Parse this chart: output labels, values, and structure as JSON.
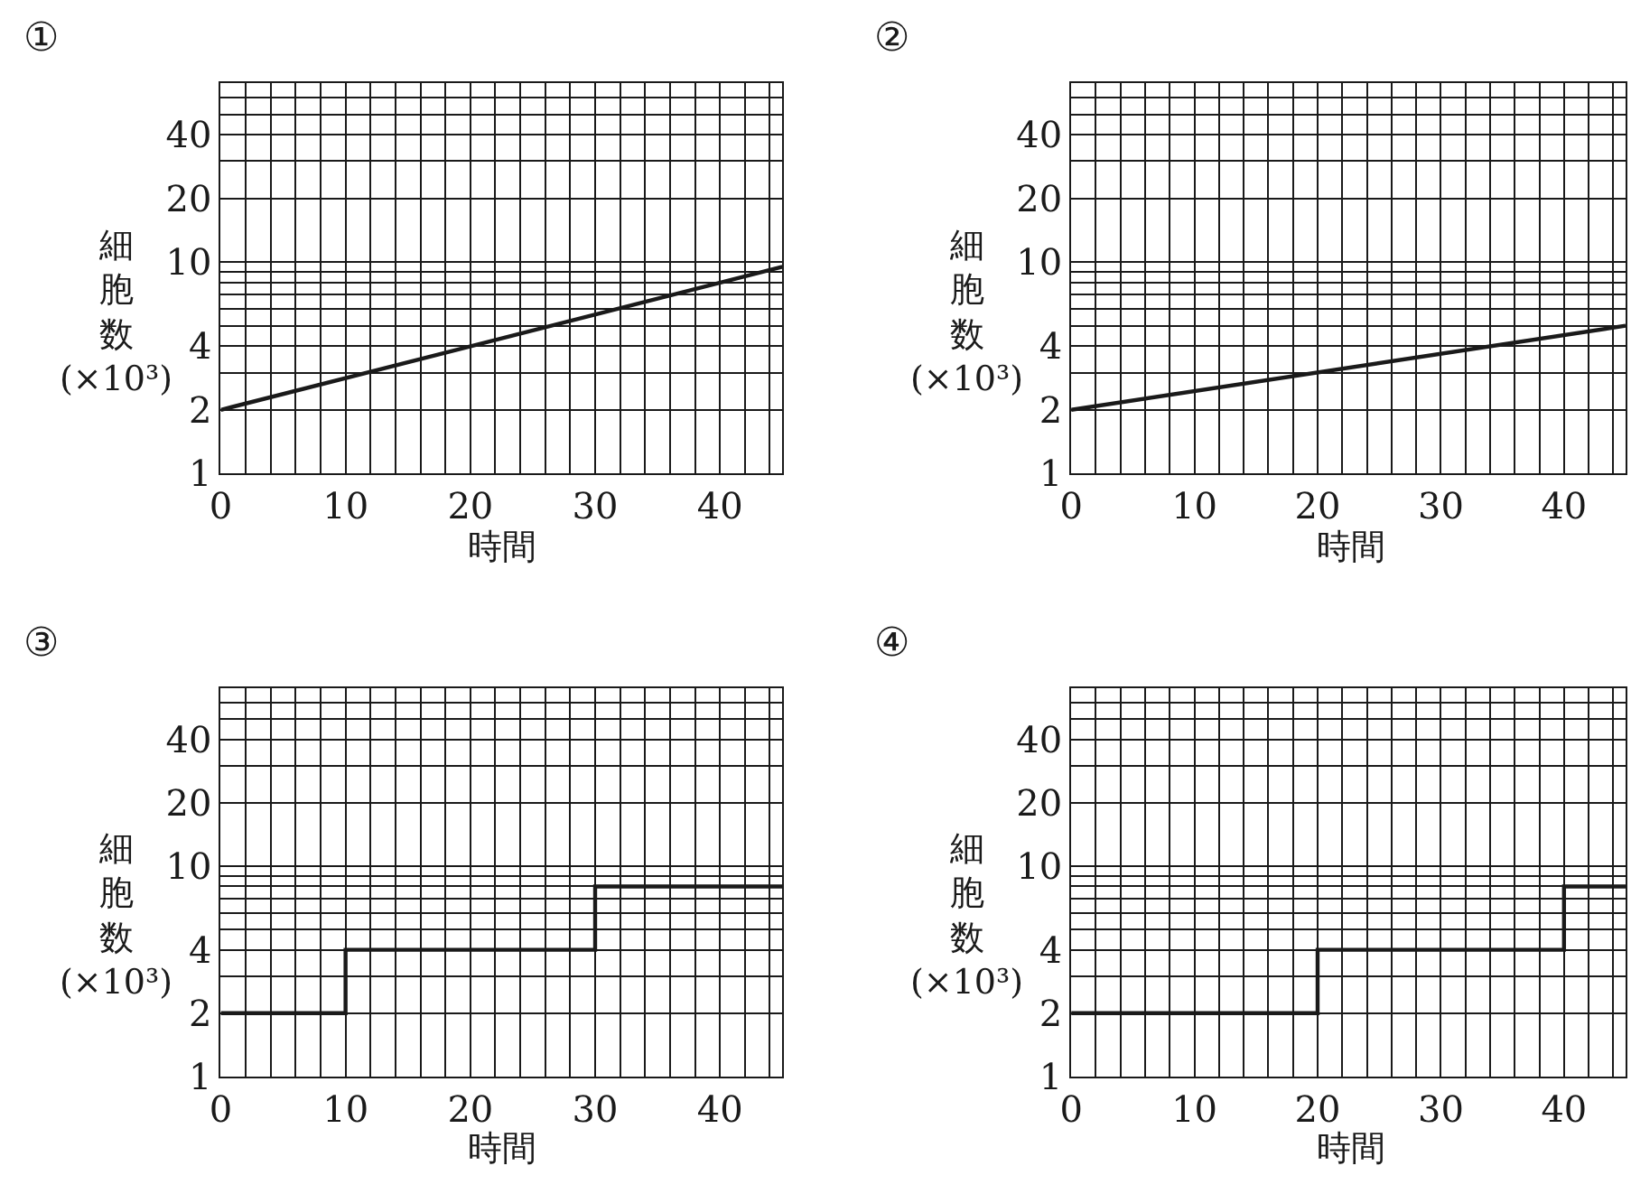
{
  "chart_data": [
    {
      "type": "line",
      "title": "①",
      "xlabel": "時間",
      "ylabel": "細胞数 (×10³)",
      "x": [
        0,
        45
      ],
      "series": [
        {
          "color": "#1a1a1a",
          "values": [
            2,
            9.5
          ]
        }
      ],
      "xlim": [
        0,
        45
      ],
      "ylim": [
        1,
        70
      ],
      "log": true,
      "grid": true,
      "marker": "none",
      "line_style": "solid",
      "xticks": [
        0,
        {
          "value": 2,
          "label": null
        },
        {
          "value": 4,
          "label": null
        },
        {
          "value": 6,
          "label": null
        },
        {
          "value": 8,
          "label": null
        },
        10,
        {
          "value": 12,
          "label": null
        },
        {
          "value": 14,
          "label": null
        },
        {
          "value": 16,
          "label": null
        },
        {
          "value": 18,
          "label": null
        },
        20,
        {
          "value": 22,
          "label": null
        },
        {
          "value": 24,
          "label": null
        },
        {
          "value": 26,
          "label": null
        },
        {
          "value": 28,
          "label": null
        },
        30,
        {
          "value": 32,
          "label": null
        },
        {
          "value": 34,
          "label": null
        },
        {
          "value": 36,
          "label": null
        },
        {
          "value": 38,
          "label": null
        },
        40,
        {
          "value": 42,
          "label": null
        },
        {
          "value": 44,
          "label": null
        }
      ],
      "yticks": [
        1,
        2,
        {
          "value": 3,
          "label": null
        },
        4,
        {
          "value": 5,
          "label": null
        },
        {
          "value": 6,
          "label": null
        },
        {
          "value": 7,
          "label": null
        },
        {
          "value": 8,
          "label": null
        },
        {
          "value": 9,
          "label": null
        },
        10,
        20,
        {
          "value": 30,
          "label": null
        },
        40,
        {
          "value": 50,
          "label": null
        },
        {
          "value": 60,
          "label": null
        },
        {
          "value": 70,
          "label": null
        }
      ]
    },
    {
      "type": "line",
      "title": "②",
      "xlabel": "時間",
      "ylabel": "細胞数 (×10³)",
      "x": [
        0,
        45
      ],
      "series": [
        {
          "color": "#1a1a1a",
          "values": [
            2,
            5
          ]
        }
      ],
      "xlim": [
        0,
        45
      ],
      "ylim": [
        1,
        70
      ],
      "log": true,
      "grid": true,
      "marker": "none",
      "line_style": "solid",
      "xticks": [
        0,
        {
          "value": 2,
          "label": null
        },
        {
          "value": 4,
          "label": null
        },
        {
          "value": 6,
          "label": null
        },
        {
          "value": 8,
          "label": null
        },
        10,
        {
          "value": 12,
          "label": null
        },
        {
          "value": 14,
          "label": null
        },
        {
          "value": 16,
          "label": null
        },
        {
          "value": 18,
          "label": null
        },
        20,
        {
          "value": 22,
          "label": null
        },
        {
          "value": 24,
          "label": null
        },
        {
          "value": 26,
          "label": null
        },
        {
          "value": 28,
          "label": null
        },
        30,
        {
          "value": 32,
          "label": null
        },
        {
          "value": 34,
          "label": null
        },
        {
          "value": 36,
          "label": null
        },
        {
          "value": 38,
          "label": null
        },
        40,
        {
          "value": 42,
          "label": null
        },
        {
          "value": 44,
          "label": null
        }
      ],
      "yticks": [
        1,
        2,
        {
          "value": 3,
          "label": null
        },
        4,
        {
          "value": 5,
          "label": null
        },
        {
          "value": 6,
          "label": null
        },
        {
          "value": 7,
          "label": null
        },
        {
          "value": 8,
          "label": null
        },
        {
          "value": 9,
          "label": null
        },
        10,
        20,
        {
          "value": 30,
          "label": null
        },
        40,
        {
          "value": 50,
          "label": null
        },
        {
          "value": 60,
          "label": null
        },
        {
          "value": 70,
          "label": null
        }
      ]
    },
    {
      "type": "step",
      "title": "③",
      "xlabel": "時間",
      "ylabel": "細胞数 (×10³)",
      "x": [
        0,
        10,
        30,
        45
      ],
      "series": [
        {
          "color": "#1a1a1a",
          "values": [
            2,
            4,
            8,
            8
          ]
        }
      ],
      "xlim": [
        0,
        45
      ],
      "ylim": [
        1,
        70
      ],
      "log": true,
      "grid": true,
      "marker": "none",
      "line_style": "solid",
      "xticks": [
        0,
        {
          "value": 2,
          "label": null
        },
        {
          "value": 4,
          "label": null
        },
        {
          "value": 6,
          "label": null
        },
        {
          "value": 8,
          "label": null
        },
        10,
        {
          "value": 12,
          "label": null
        },
        {
          "value": 14,
          "label": null
        },
        {
          "value": 16,
          "label": null
        },
        {
          "value": 18,
          "label": null
        },
        20,
        {
          "value": 22,
          "label": null
        },
        {
          "value": 24,
          "label": null
        },
        {
          "value": 26,
          "label": null
        },
        {
          "value": 28,
          "label": null
        },
        30,
        {
          "value": 32,
          "label": null
        },
        {
          "value": 34,
          "label": null
        },
        {
          "value": 36,
          "label": null
        },
        {
          "value": 38,
          "label": null
        },
        40,
        {
          "value": 42,
          "label": null
        },
        {
          "value": 44,
          "label": null
        }
      ],
      "yticks": [
        1,
        2,
        {
          "value": 3,
          "label": null
        },
        4,
        {
          "value": 5,
          "label": null
        },
        {
          "value": 6,
          "label": null
        },
        {
          "value": 7,
          "label": null
        },
        {
          "value": 8,
          "label": null
        },
        {
          "value": 9,
          "label": null
        },
        10,
        20,
        {
          "value": 30,
          "label": null
        },
        40,
        {
          "value": 50,
          "label": null
        },
        {
          "value": 60,
          "label": null
        },
        {
          "value": 70,
          "label": null
        }
      ]
    },
    {
      "type": "step",
      "title": "④",
      "xlabel": "時間",
      "ylabel": "細胞数 (×10³)",
      "x": [
        0,
        20,
        40,
        45
      ],
      "series": [
        {
          "color": "#1a1a1a",
          "values": [
            2,
            4,
            8,
            8
          ]
        }
      ],
      "xlim": [
        0,
        45
      ],
      "ylim": [
        1,
        70
      ],
      "log": true,
      "grid": true,
      "marker": "none",
      "line_style": "solid",
      "xticks": [
        0,
        {
          "value": 2,
          "label": null
        },
        {
          "value": 4,
          "label": null
        },
        {
          "value": 6,
          "label": null
        },
        {
          "value": 8,
          "label": null
        },
        10,
        {
          "value": 12,
          "label": null
        },
        {
          "value": 14,
          "label": null
        },
        {
          "value": 16,
          "label": null
        },
        {
          "value": 18,
          "label": null
        },
        20,
        {
          "value": 22,
          "label": null
        },
        {
          "value": 24,
          "label": null
        },
        {
          "value": 26,
          "label": null
        },
        {
          "value": 28,
          "label": null
        },
        30,
        {
          "value": 32,
          "label": null
        },
        {
          "value": 34,
          "label": null
        },
        {
          "value": 36,
          "label": null
        },
        {
          "value": 38,
          "label": null
        },
        40,
        {
          "value": 42,
          "label": null
        },
        {
          "value": 44,
          "label": null
        }
      ],
      "yticks": [
        1,
        2,
        {
          "value": 3,
          "label": null
        },
        4,
        {
          "value": 5,
          "label": null
        },
        {
          "value": 6,
          "label": null
        },
        {
          "value": 7,
          "label": null
        },
        {
          "value": 8,
          "label": null
        },
        {
          "value": 9,
          "label": null
        },
        10,
        20,
        {
          "value": 30,
          "label": null
        },
        40,
        {
          "value": 50,
          "label": null
        },
        {
          "value": 60,
          "label": null
        },
        {
          "value": 70,
          "label": null
        }
      ]
    }
  ]
}
